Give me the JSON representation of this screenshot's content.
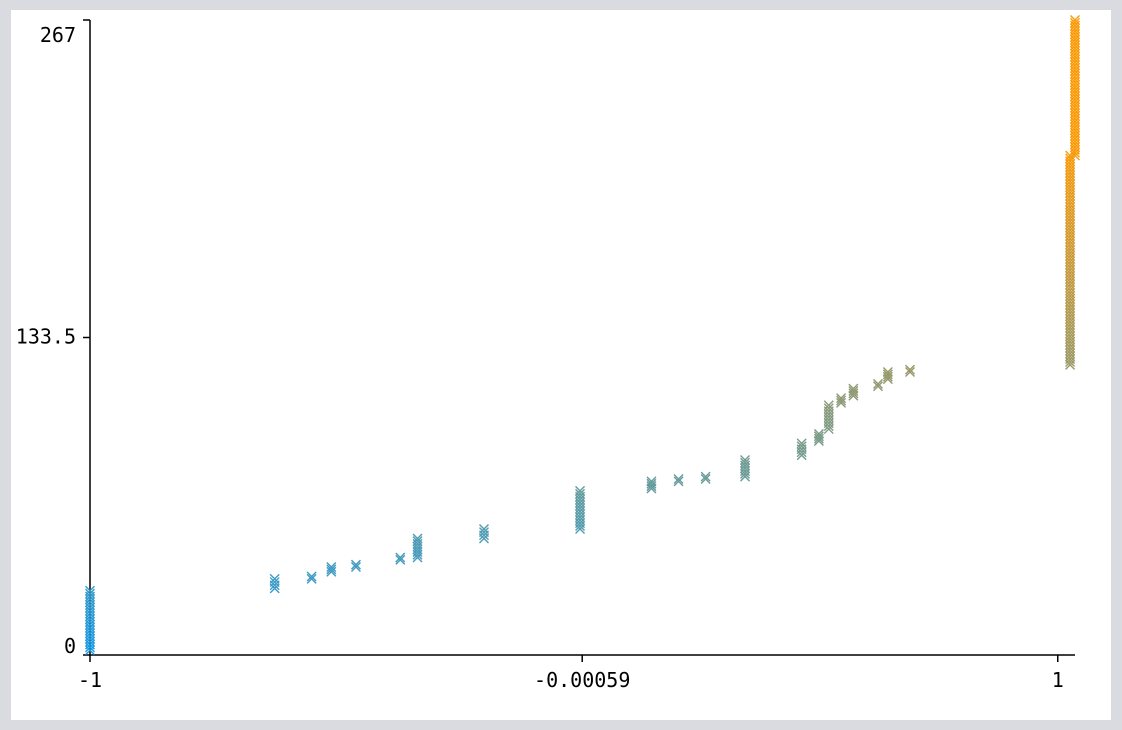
{
  "chart_data": {
    "type": "scatter",
    "title": "",
    "xlabel": "",
    "ylabel": "",
    "xlim": [
      -1,
      1.0
    ],
    "ylim": [
      0,
      267
    ],
    "grid": false,
    "marker": "x",
    "color_gradient": {
      "low": "#1a9be8",
      "high": "#fb9a06"
    },
    "x_ticks": [
      {
        "value": -1,
        "label": "-1"
      },
      {
        "value": -0.00059,
        "label": "-0.00059"
      },
      {
        "value": 0.965,
        "label": "1"
      }
    ],
    "y_ticks": [
      {
        "value": 0,
        "label": "0"
      },
      {
        "value": 133.5,
        "label": "133.5"
      },
      {
        "value": 267,
        "label": "267"
      }
    ],
    "clusters": [
      {
        "x": -1.0,
        "y_min": 2,
        "y_max": 27
      },
      {
        "x": -0.625,
        "y_min": 28,
        "y_max": 32
      },
      {
        "x": -0.55,
        "y_min": 32,
        "y_max": 33
      },
      {
        "x": -0.51,
        "y_min": 35,
        "y_max": 37
      },
      {
        "x": -0.46,
        "y_min": 37,
        "y_max": 38
      },
      {
        "x": -0.37,
        "y_min": 40,
        "y_max": 41
      },
      {
        "x": -0.335,
        "y_min": 41,
        "y_max": 49
      },
      {
        "x": -0.2,
        "y_min": 49,
        "y_max": 53
      },
      {
        "x": -0.005,
        "y_min": 53,
        "y_max": 69
      },
      {
        "x": 0.14,
        "y_min": 70,
        "y_max": 73
      },
      {
        "x": 0.195,
        "y_min": 73,
        "y_max": 74
      },
      {
        "x": 0.25,
        "y_min": 74,
        "y_max": 75
      },
      {
        "x": 0.33,
        "y_min": 75,
        "y_max": 82
      },
      {
        "x": 0.445,
        "y_min": 84,
        "y_max": 89
      },
      {
        "x": 0.48,
        "y_min": 90,
        "y_max": 93
      },
      {
        "x": 0.5,
        "y_min": 95,
        "y_max": 105
      },
      {
        "x": 0.525,
        "y_min": 106,
        "y_max": 108
      },
      {
        "x": 0.55,
        "y_min": 109,
        "y_max": 112
      },
      {
        "x": 0.6,
        "y_min": 113,
        "y_max": 114
      },
      {
        "x": 0.62,
        "y_min": 116,
        "y_max": 119
      },
      {
        "x": 0.665,
        "y_min": 119,
        "y_max": 120
      },
      {
        "x": 0.99,
        "y_min": 122,
        "y_max": 210
      },
      {
        "x": 1.0,
        "y_min": 210,
        "y_max": 267
      }
    ]
  }
}
